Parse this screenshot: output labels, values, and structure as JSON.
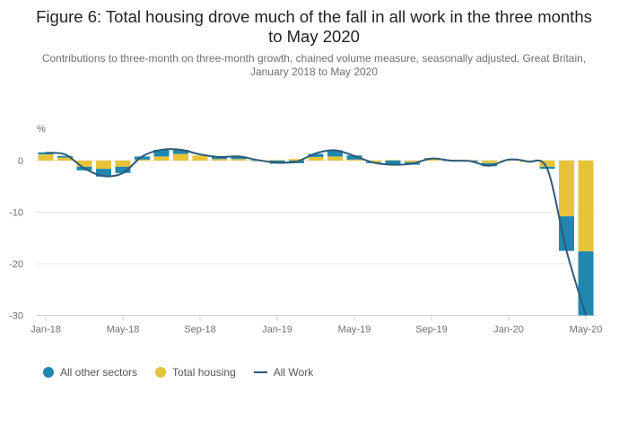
{
  "chart_data": {
    "type": "bar",
    "stacked": true,
    "title": "Figure 6: Total housing drove much of the fall in all work in the three months to May 2020",
    "subtitle": "Contributions to three-month on three-month growth, chained volume measure, seasonally adjusted, Great Britain, January 2018 to May 2020",
    "ylabel": "%",
    "xlabel": "",
    "ylim": [
      -30,
      5
    ],
    "yticks": [
      0,
      -10,
      -20,
      -30
    ],
    "ytick_labels": [
      "0",
      "-10",
      "-20",
      "-30"
    ],
    "grid": true,
    "legend_position": "bottom-left",
    "categories": [
      "Jan-18",
      "Feb-18",
      "Mar-18",
      "Apr-18",
      "May-18",
      "Jun-18",
      "Jul-18",
      "Aug-18",
      "Sep-18",
      "Oct-18",
      "Nov-18",
      "Dec-18",
      "Jan-19",
      "Feb-19",
      "Mar-19",
      "Apr-19",
      "May-19",
      "Jun-19",
      "Jul-19",
      "Aug-19",
      "Sep-19",
      "Oct-19",
      "Nov-19",
      "Dec-19",
      "Jan-20",
      "Feb-20",
      "Mar-20",
      "Apr-20",
      "May-20"
    ],
    "xtick_labels": [
      "Jan-18",
      "May-18",
      "Sep-18",
      "Jan-19",
      "May-19",
      "Sep-19",
      "Jan-20",
      "May-20"
    ],
    "xtick_indices": [
      0,
      4,
      8,
      12,
      16,
      20,
      24,
      28
    ],
    "series": [
      {
        "name": "All other sectors",
        "type": "bar",
        "color": "#1f87b0",
        "values": [
          0.4,
          0.3,
          -0.7,
          -1.5,
          -1.2,
          0.6,
          1.3,
          0.8,
          0.0,
          0.4,
          0.5,
          -0.1,
          -0.6,
          -0.5,
          0.6,
          1.2,
          0.8,
          -0.2,
          -0.9,
          -0.5,
          0.1,
          -0.1,
          -0.2,
          -0.6,
          0.0,
          0.0,
          -0.4,
          -6.7,
          -12.4
        ]
      },
      {
        "name": "Total housing",
        "type": "bar",
        "color": "#e6c33a",
        "values": [
          1.2,
          0.6,
          -1.2,
          -1.6,
          -1.2,
          0.2,
          0.8,
          1.3,
          1.0,
          0.3,
          0.3,
          0.1,
          0.1,
          0.3,
          0.7,
          0.8,
          0.2,
          -0.3,
          0.1,
          -0.3,
          0.4,
          0.1,
          0.1,
          -0.5,
          0.1,
          -0.3,
          -1.2,
          -10.8,
          -17.6
        ]
      },
      {
        "name": "All Work",
        "type": "line",
        "color": "#2d5a78",
        "values": [
          1.5,
          1.2,
          -1.5,
          -3.0,
          -2.4,
          0.8,
          2.1,
          2.1,
          1.2,
          0.7,
          0.8,
          0.1,
          -0.4,
          -0.2,
          1.4,
          2.0,
          0.9,
          -0.4,
          -0.8,
          -0.6,
          0.4,
          0.0,
          -0.1,
          -1.0,
          0.2,
          -0.2,
          -1.6,
          -17.5,
          -30.0
        ]
      }
    ]
  },
  "legend": {
    "items": [
      {
        "label": "All other sectors",
        "symbol": "circle",
        "color": "#1f87b0"
      },
      {
        "label": "Total housing",
        "symbol": "circle",
        "color": "#e6c33a"
      },
      {
        "label": "All Work",
        "symbol": "line",
        "color": "#2d5a78"
      }
    ]
  }
}
